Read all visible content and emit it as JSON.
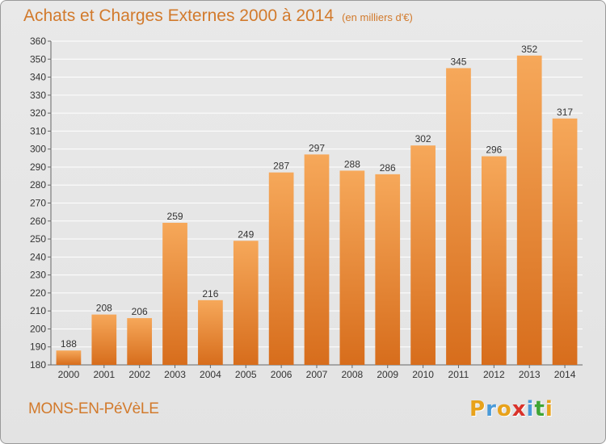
{
  "header": {
    "title": "Achats et Charges Externes 2000 à 2014",
    "unit": "(en milliers d'€)"
  },
  "footer": {
    "town": "MONS-EN-PéVèLE",
    "logo_letters": [
      "P",
      "r",
      "o",
      "x",
      "i",
      "t",
      "i"
    ],
    "logo_colors": [
      "#e8a21b",
      "#4a9ad8",
      "#e8a21b",
      "#d9322a",
      "#4a9ad8",
      "#3fa535",
      "#e8a21b"
    ]
  },
  "colors": {
    "bar_light": "#f6a85a",
    "bar_dark": "#d76d1c",
    "title": "#d27a2c",
    "grid": "#ffffff"
  },
  "chart_data": {
    "type": "bar",
    "title": "Achats et Charges Externes 2000 à 2014",
    "subtitle": "(en milliers d'€)",
    "categories": [
      "2000",
      "2001",
      "2002",
      "2003",
      "2004",
      "2005",
      "2006",
      "2007",
      "2008",
      "2009",
      "2010",
      "2011",
      "2012",
      "2013",
      "2014"
    ],
    "values": [
      188,
      208,
      206,
      259,
      216,
      249,
      287,
      297,
      288,
      286,
      302,
      345,
      296,
      352,
      317
    ],
    "ylim": [
      180,
      360
    ],
    "ytick_step": 10,
    "grid": true,
    "xlabel": "",
    "ylabel": ""
  }
}
